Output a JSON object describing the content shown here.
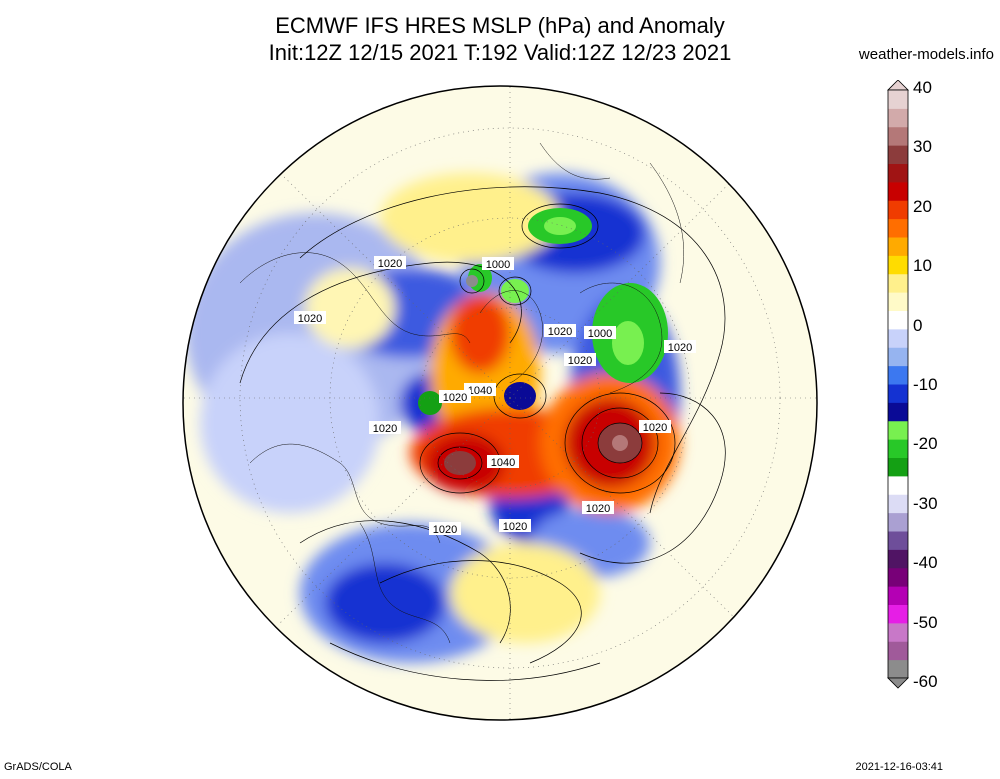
{
  "header": {
    "title_line1": "ECMWF IFS HRES MSLP (hPa) and Anomaly",
    "title_line2": "Init:12Z 12/15 2021 T:192 Valid:12Z 12/23 2021",
    "site": "weather-models.info"
  },
  "footer": {
    "credit": "GrADS/COLA",
    "timestamp": "2021-12-16-03:41"
  },
  "map": {
    "projection": "polar stereographic (north)",
    "variable": "MSLP (hPa) and Anomaly",
    "isobar_labels": [
      "1020",
      "1000",
      "1020",
      "1020",
      "1000",
      "1020",
      "1020",
      "1040",
      "1020",
      "1020",
      "1040",
      "1020",
      "1020",
      "1020",
      "1020"
    ],
    "features": [
      {
        "name": "positive-anomaly-siberia",
        "anomaly": 25
      },
      {
        "name": "positive-anomaly-pacific",
        "anomaly": 30
      },
      {
        "name": "positive-anomaly-arctic",
        "anomaly": 20
      },
      {
        "name": "negative-anomaly-north-america",
        "anomaly": -25
      },
      {
        "name": "negative-anomaly-greenland-sea",
        "anomaly": -22
      },
      {
        "name": "negative-anomaly-north-atlantic",
        "anomaly": -15
      },
      {
        "name": "negative-anomaly-asia",
        "anomaly": -12
      }
    ]
  },
  "colorbar": {
    "min": -60,
    "max": 40,
    "ticks": [
      "40",
      "30",
      "20",
      "10",
      "0",
      "-10",
      "-20",
      "-30",
      "-40",
      "-50",
      "-60"
    ],
    "colors": [
      "#8c8c8c",
      "#a05a9a",
      "#c878c8",
      "#e61ee6",
      "#b400b4",
      "#780078",
      "#501464",
      "#6e4e9a",
      "#aaa0d2",
      "#dcdcf5",
      "#ffffff",
      "#14a014",
      "#28c828",
      "#78f050",
      "#0a0a96",
      "#1432d2",
      "#3c78f0",
      "#96b4f0",
      "#c8d2fa",
      "#ffffff",
      "#fffac8",
      "#fff08c",
      "#ffdc00",
      "#ffaa00",
      "#ff6e00",
      "#f03c00",
      "#c80000",
      "#a01414",
      "#8c3c3c",
      "#b47878",
      "#d2aaaa",
      "#e6d2d2"
    ]
  }
}
